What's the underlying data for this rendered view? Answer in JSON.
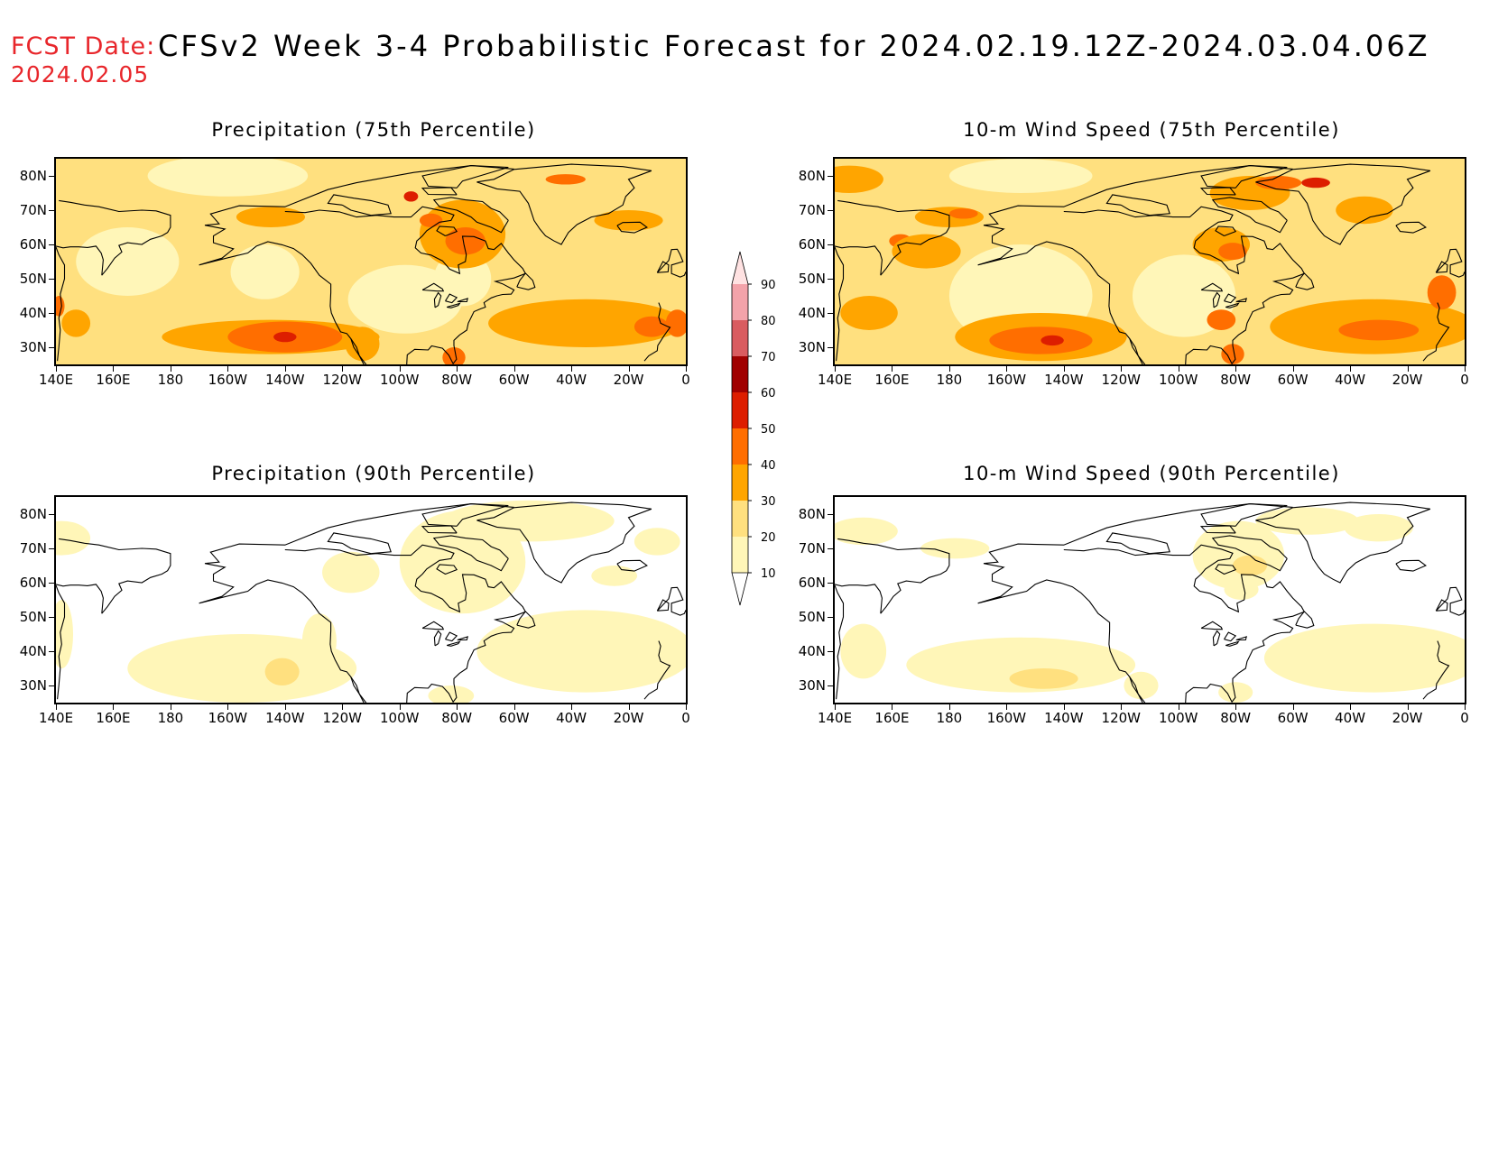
{
  "header": {
    "fcst_label": "FCST Date:",
    "fcst_date": "2024.02.05",
    "title": "CFSv2 Week 3-4 Probabilistic Forecast for 2024.02.19.12Z-2024.03.04.06Z"
  },
  "panels": [
    {
      "id": "precip-75",
      "title": "Precipitation (75th Percentile)"
    },
    {
      "id": "wind-75",
      "title": "10-m Wind Speed (75th Percentile)"
    },
    {
      "id": "precip-90",
      "title": "Precipitation (90th Percentile)"
    },
    {
      "id": "wind-90",
      "title": "10-m Wind Speed (90th Percentile)"
    }
  ],
  "map": {
    "lat_labels": [
      "80N",
      "70N",
      "60N",
      "50N",
      "40N",
      "30N"
    ],
    "lon_labels": [
      "140E",
      "160E",
      "180",
      "160W",
      "140W",
      "120W",
      "100W",
      "80W",
      "60W",
      "40W",
      "20W",
      "0"
    ],
    "lat_range": [
      25,
      85
    ],
    "lon_range": [
      140,
      360
    ]
  },
  "colorbar": {
    "levels": [
      "10",
      "20",
      "30",
      "40",
      "50",
      "60",
      "70",
      "80",
      "90"
    ],
    "colors": [
      "#ffffff",
      "#fff6b8",
      "#ffe07f",
      "#ffa500",
      "#ff6e00",
      "#dd1e00",
      "#a00000",
      "#d95c60",
      "#f3a3aa",
      "#ffe2e2"
    ]
  },
  "colors": {
    "light": "#fff6b8",
    "medium": "#ffe07f",
    "orange": "#ffa500",
    "dark_orange": "#ff6e00",
    "red": "#dd1e00"
  }
}
